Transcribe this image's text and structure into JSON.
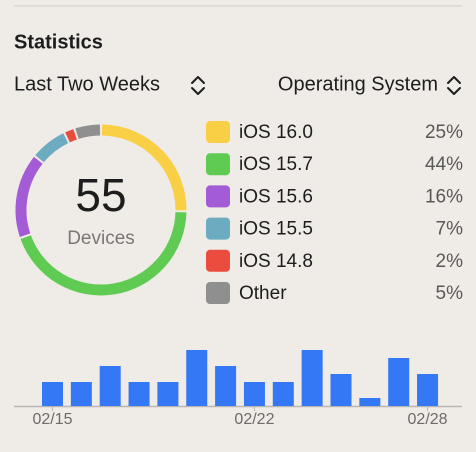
{
  "header": {
    "title": "Statistics"
  },
  "controls": {
    "period": "Last Two Weeks",
    "grouping": "Operating System"
  },
  "chart_data": [
    {
      "type": "pie",
      "donut": true,
      "center_value": 55,
      "center_label": "Devices",
      "categories": [
        "iOS 16.0",
        "iOS 15.7",
        "iOS 15.6",
        "iOS 15.5",
        "iOS 14.8",
        "Other"
      ],
      "values": [
        25,
        44,
        16,
        7,
        2,
        5
      ],
      "value_labels": [
        "25%",
        "44%",
        "16%",
        "7%",
        "2%",
        "5%"
      ],
      "colors": [
        "#f8cf45",
        "#5fcb52",
        "#a35bd6",
        "#6dabc0",
        "#ea4d3d",
        "#8f8f8f"
      ]
    },
    {
      "type": "bar",
      "categories": [
        "02/15",
        null,
        null,
        null,
        null,
        null,
        null,
        "02/22",
        null,
        null,
        null,
        null,
        null,
        "02/28"
      ],
      "values": [
        3,
        3,
        5,
        3,
        3,
        7,
        5,
        3,
        3,
        7,
        4,
        1,
        6,
        4
      ],
      "color": "#3478f6"
    }
  ]
}
